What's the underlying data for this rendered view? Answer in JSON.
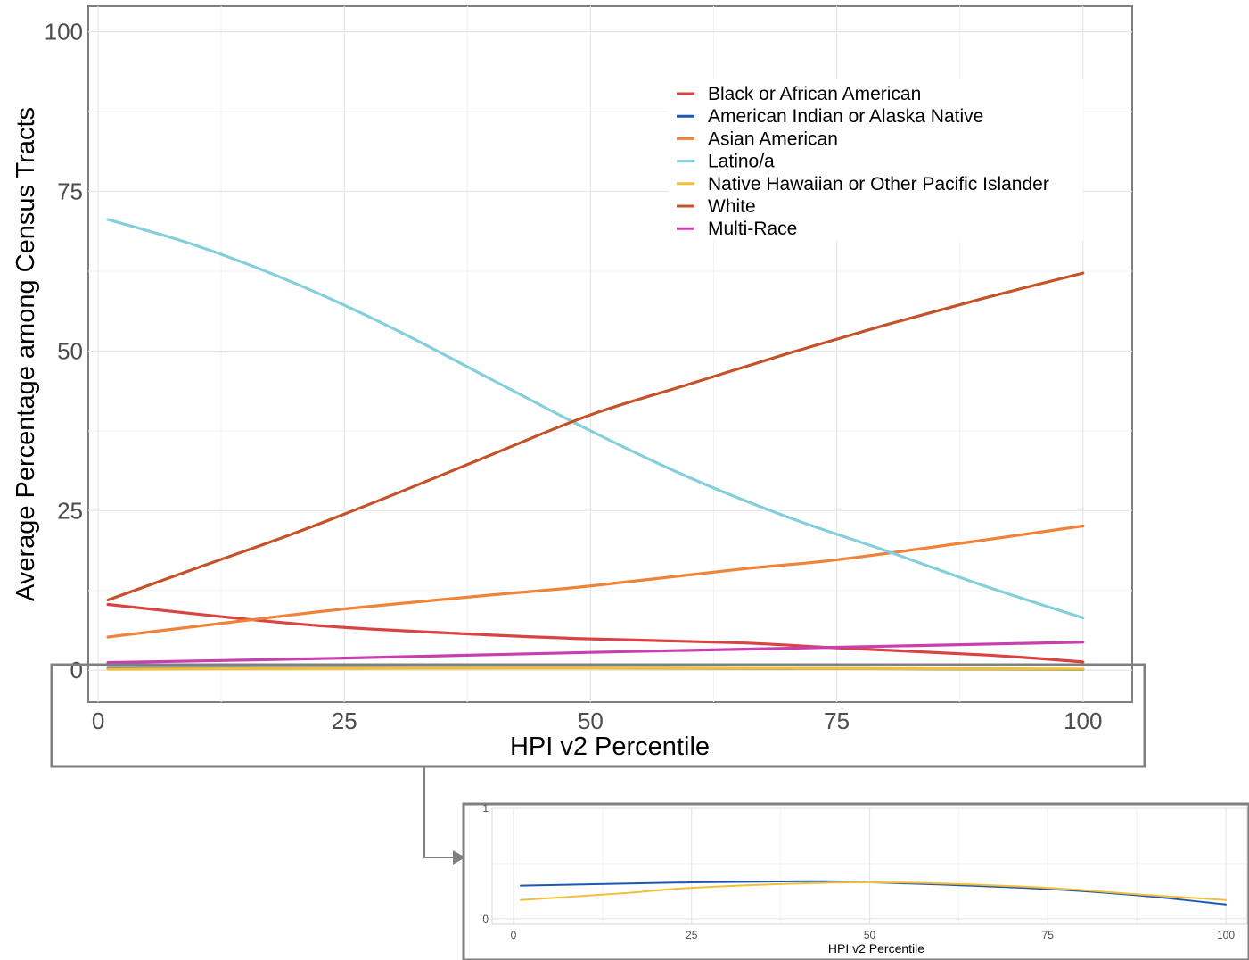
{
  "chart_data": [
    {
      "type": "line",
      "title": "",
      "xlabel": "HPI v2 Percentile",
      "ylabel": "Average Percentage among Census Tracts",
      "xlim": [
        -1,
        105
      ],
      "ylim": [
        -5,
        104
      ],
      "x_ticks": [
        "0",
        "25",
        "50",
        "75",
        "100"
      ],
      "y_ticks": [
        "0",
        "25",
        "50",
        "75",
        "100"
      ],
      "grid": true,
      "legend_position": "top-right",
      "series": [
        {
          "name": "Black or African American",
          "color": "#d94343",
          "x": [
            1,
            15,
            25,
            40,
            50,
            65,
            75,
            90,
            100
          ],
          "y": [
            10.3,
            8.0,
            6.7,
            5.5,
            4.9,
            4.3,
            3.5,
            2.4,
            1.3
          ]
        },
        {
          "name": "American Indian or Alaska Native",
          "color": "#1f57b5",
          "x": [
            1,
            25,
            50,
            75,
            100
          ],
          "y": [
            0.3,
            0.33,
            0.33,
            0.27,
            0.13
          ]
        },
        {
          "name": "Asian American",
          "color": "#f0833a",
          "x": [
            1,
            15,
            25,
            40,
            50,
            65,
            75,
            90,
            100
          ],
          "y": [
            5.2,
            7.8,
            9.6,
            11.8,
            13.2,
            15.8,
            17.3,
            20.4,
            22.6
          ]
        },
        {
          "name": "Latino/a",
          "color": "#84cfdc",
          "x": [
            1,
            10,
            20,
            30,
            40,
            50,
            60,
            70,
            80,
            90,
            100
          ],
          "y": [
            70.6,
            66.5,
            60.6,
            53.5,
            45.5,
            37.5,
            30.2,
            24.0,
            18.7,
            13.2,
            8.2
          ]
        },
        {
          "name": "Native Hawaiian or Other Pacific Islander",
          "color": "#f2c037",
          "x": [
            1,
            25,
            50,
            75,
            100
          ],
          "y": [
            0.17,
            0.28,
            0.33,
            0.28,
            0.17
          ]
        },
        {
          "name": "White",
          "color": "#c5532a",
          "x": [
            1,
            10,
            20,
            30,
            40,
            50,
            60,
            70,
            80,
            90,
            100
          ],
          "y": [
            11.0,
            16.0,
            21.5,
            27.5,
            33.8,
            40.0,
            44.8,
            49.6,
            54.1,
            58.3,
            62.2
          ]
        },
        {
          "name": "Multi-Race",
          "color": "#c93fb0",
          "x": [
            1,
            25,
            50,
            75,
            100
          ],
          "y": [
            1.2,
            1.9,
            2.8,
            3.6,
            4.4
          ]
        }
      ]
    },
    {
      "type": "line",
      "title": "",
      "xlabel": "HPI v2 Percentile",
      "ylabel": "",
      "xlim": [
        -3,
        103
      ],
      "ylim": [
        -0.05,
        1
      ],
      "x_ticks": [
        "0",
        "25",
        "50",
        "75",
        "100"
      ],
      "y_ticks": [
        "0",
        "1"
      ],
      "grid": true,
      "series": [
        {
          "name": "American Indian or Alaska Native",
          "color": "#1f57b5",
          "x": [
            1,
            25,
            42,
            50,
            60,
            75,
            88,
            100
          ],
          "y": [
            0.3,
            0.33,
            0.34,
            0.33,
            0.31,
            0.27,
            0.21,
            0.13
          ]
        },
        {
          "name": "Native Hawaiian or Other Pacific Islander",
          "color": "#f2c037",
          "x": [
            1,
            15,
            25,
            40,
            50,
            60,
            75,
            88,
            100
          ],
          "y": [
            0.17,
            0.23,
            0.28,
            0.32,
            0.33,
            0.32,
            0.28,
            0.22,
            0.17
          ]
        }
      ]
    }
  ]
}
